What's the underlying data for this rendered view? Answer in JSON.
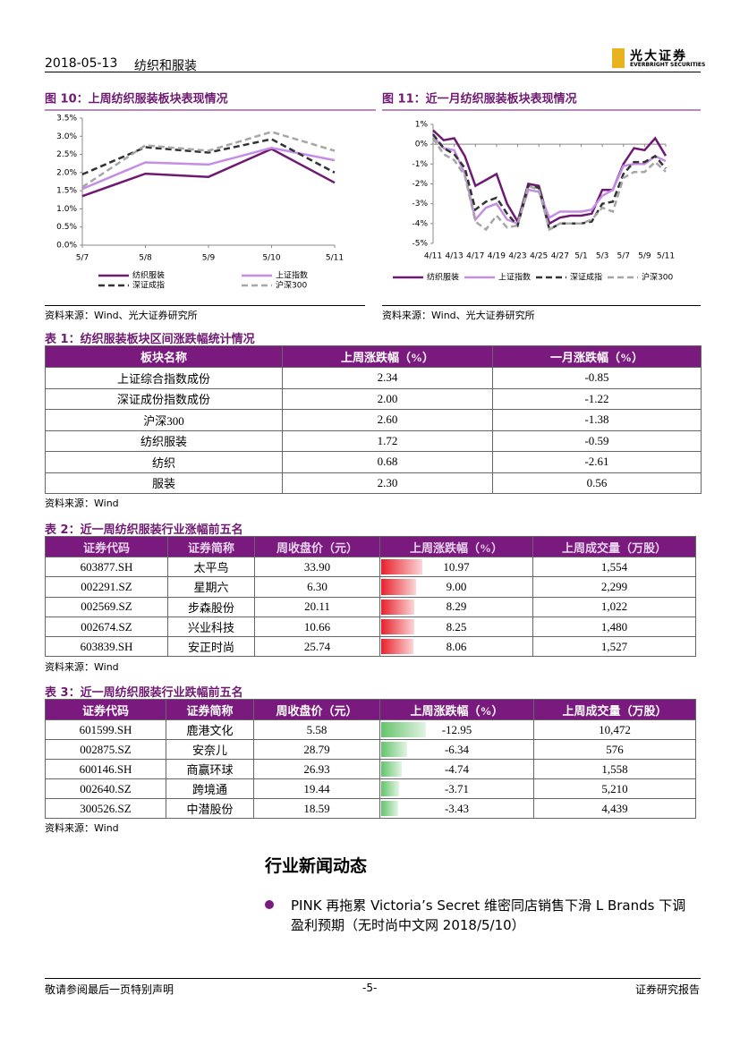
{
  "header": {
    "date": "2018-05-13",
    "sector": "纺织和服装",
    "logo": "光大证券",
    "logo_en": "EVERBRIGHT SECURITIES"
  },
  "chart_data": [
    {
      "type": "line",
      "title": "图 10：上周纺织服装板块表现情况",
      "categories": [
        "5/7",
        "5/8",
        "5/9",
        "5/10",
        "5/11"
      ],
      "series": [
        {
          "name": "纺织服装",
          "color": "#6f1a72",
          "values": [
            1.35,
            1.97,
            1.88,
            2.65,
            1.72
          ]
        },
        {
          "name": "上证指数",
          "color": "#c48ee6",
          "values": [
            1.55,
            2.28,
            2.22,
            2.68,
            2.34
          ]
        },
        {
          "name": "深证成指",
          "color": "#333333",
          "dash": true,
          "values": [
            1.95,
            2.7,
            2.55,
            2.92,
            2.0
          ]
        },
        {
          "name": "沪深300",
          "color": "#a6a6a6",
          "dash": true,
          "values": [
            1.6,
            2.75,
            2.6,
            3.12,
            2.6
          ]
        }
      ],
      "ylim": [
        0,
        3.5
      ],
      "yticks": [
        {
          "value": 0,
          "label": "0.0%"
        },
        {
          "value": 0.5,
          "label": "0.5%"
        },
        {
          "value": 1,
          "label": "1.0%"
        },
        {
          "value": 1.5,
          "label": "1.5%"
        },
        {
          "value": 2,
          "label": "2.0%"
        },
        {
          "value": 2.5,
          "label": "2.5%"
        },
        {
          "value": 3,
          "label": "3.0%"
        },
        {
          "value": 3.5,
          "label": "3.5%"
        }
      ]
    },
    {
      "type": "line",
      "title": "图 11：近一月纺织服装板块表现情况",
      "categories": [
        "4/11",
        null,
        "4/13",
        null,
        "4/17",
        null,
        "4/19",
        null,
        "4/23",
        null,
        "4/25",
        null,
        "4/27",
        null,
        "5/1",
        null,
        "5/3",
        null,
        "5/7",
        null,
        "5/9",
        null,
        "5/11"
      ],
      "series": [
        {
          "name": "纺织服装",
          "color": "#6f1a72",
          "values": [
            0.7,
            0.2,
            0.3,
            -0.6,
            -2.1,
            -1.8,
            -1.5,
            -3.0,
            -3.9,
            -2.0,
            -2.1,
            -4.0,
            -3.7,
            -3.6,
            -3.6,
            -3.5,
            -2.3,
            -2.3,
            -1.0,
            -0.2,
            -0.3,
            0.3,
            -0.59
          ]
        },
        {
          "name": "上证指数",
          "color": "#c48ee6",
          "values": [
            0.4,
            -0.2,
            -0.3,
            -1.5,
            -3.8,
            -3.2,
            -3.0,
            -3.8,
            -4.0,
            -2.3,
            -2.4,
            -3.7,
            -3.4,
            -3.4,
            -3.4,
            -3.3,
            -2.6,
            -2.3,
            -1.1,
            -1.0,
            -1.0,
            -0.6,
            -0.85
          ]
        },
        {
          "name": "深证成指",
          "color": "#333333",
          "dash": true,
          "values": [
            0.5,
            -0.2,
            -0.5,
            -1.2,
            -3.3,
            -2.9,
            -2.7,
            -3.5,
            -4.1,
            -2.1,
            -2.2,
            -4.3,
            -4.0,
            -4.0,
            -4.0,
            -3.9,
            -3.0,
            -2.9,
            -1.5,
            -0.9,
            -0.9,
            -0.6,
            -1.22
          ]
        },
        {
          "name": "沪深300",
          "color": "#a6a6a6",
          "dash": true,
          "values": [
            0.3,
            -0.5,
            -0.8,
            -1.6,
            -3.9,
            -4.3,
            -3.6,
            -4.2,
            -4.1,
            -2.1,
            -2.3,
            -4.3,
            -4.0,
            -4.0,
            -4.0,
            -3.8,
            -3.2,
            -3.4,
            -1.7,
            -1.4,
            -1.4,
            -0.9,
            -1.38
          ]
        }
      ],
      "ylim": [
        -5,
        1
      ],
      "yticks": [
        {
          "value": -5,
          "label": "-5%"
        },
        {
          "value": -4,
          "label": "-4%"
        },
        {
          "value": -3,
          "label": "-3%"
        },
        {
          "value": -2,
          "label": "-2%"
        },
        {
          "value": -1,
          "label": "-1%"
        },
        {
          "value": 0,
          "label": "0%"
        },
        {
          "value": 1,
          "label": "1%"
        }
      ]
    }
  ],
  "chart_sources": [
    "资料来源：Wind、光大证券研究所",
    "资料来源：Wind、光大证券研究所"
  ],
  "tables": [
    {
      "title": "表 1：纺织服装板块区间涨跌幅统计情况",
      "headers": [
        "板块名称",
        "上周涨跌幅（%）",
        "一月涨跌幅（%）"
      ],
      "rows": [
        [
          "上证综合指数成份",
          "2.34",
          "-0.85"
        ],
        [
          "深证成份指数成份",
          "2.00",
          "-1.22"
        ],
        [
          "沪深300",
          "2.60",
          "-1.38"
        ],
        [
          "纺织服装",
          "1.72",
          "-0.59"
        ],
        [
          "纺织",
          "0.68",
          "-2.61"
        ],
        [
          "服装",
          "2.30",
          "0.56"
        ]
      ],
      "source": "资料来源：Wind"
    },
    {
      "title": "表 2：近一周纺织服装行业涨幅前五名",
      "headers": [
        "证券代码",
        "证券简称",
        "周收盘价（元）",
        "上周涨跌幅（%）",
        "上周成交量（万股）"
      ],
      "rows": [
        [
          "603877.SH",
          "太平鸟",
          "33.90",
          "10.97",
          "1,554"
        ],
        [
          "002291.SZ",
          "星期六",
          "6.30",
          "9.00",
          "2,299"
        ],
        [
          "002569.SZ",
          "步森股份",
          "20.11",
          "8.29",
          "1,022"
        ],
        [
          "002674.SZ",
          "兴业科技",
          "10.66",
          "8.25",
          "1,480"
        ],
        [
          "603839.SH",
          "安正时尚",
          "25.74",
          "8.06",
          "1,527"
        ]
      ],
      "source": "资料来源：Wind"
    },
    {
      "title": "表 3：近一周纺织服装行业跌幅前五名",
      "headers": [
        "证券代码",
        "证券简称",
        "周收盘价（元）",
        "上周涨跌幅（%）",
        "上周成交量（万股）"
      ],
      "rows": [
        [
          "601599.SH",
          "鹿港文化",
          "5.58",
          "-12.95",
          "10,472"
        ],
        [
          "002875.SZ",
          "安奈儿",
          "28.79",
          "-6.34",
          "576"
        ],
        [
          "600146.SH",
          "商赢环球",
          "26.93",
          "-4.74",
          "1,558"
        ],
        [
          "002640.SZ",
          "跨境通",
          "19.44",
          "-3.71",
          "5,210"
        ],
        [
          "300526.SZ",
          "中潜股份",
          "18.59",
          "-3.43",
          "4,439"
        ]
      ],
      "source": "资料来源：Wind"
    }
  ],
  "news": {
    "heading": "行业新闻动态",
    "items": [
      "PINK 再拖累 Victoria’s Secret 维密同店销售下滑 L Brands 下调盈利预期（无时尚中文网 2018/5/10）"
    ]
  },
  "footer": {
    "left": "敬请参阅最后一页特别声明",
    "center": "-5-",
    "right": "证券研究报告"
  }
}
